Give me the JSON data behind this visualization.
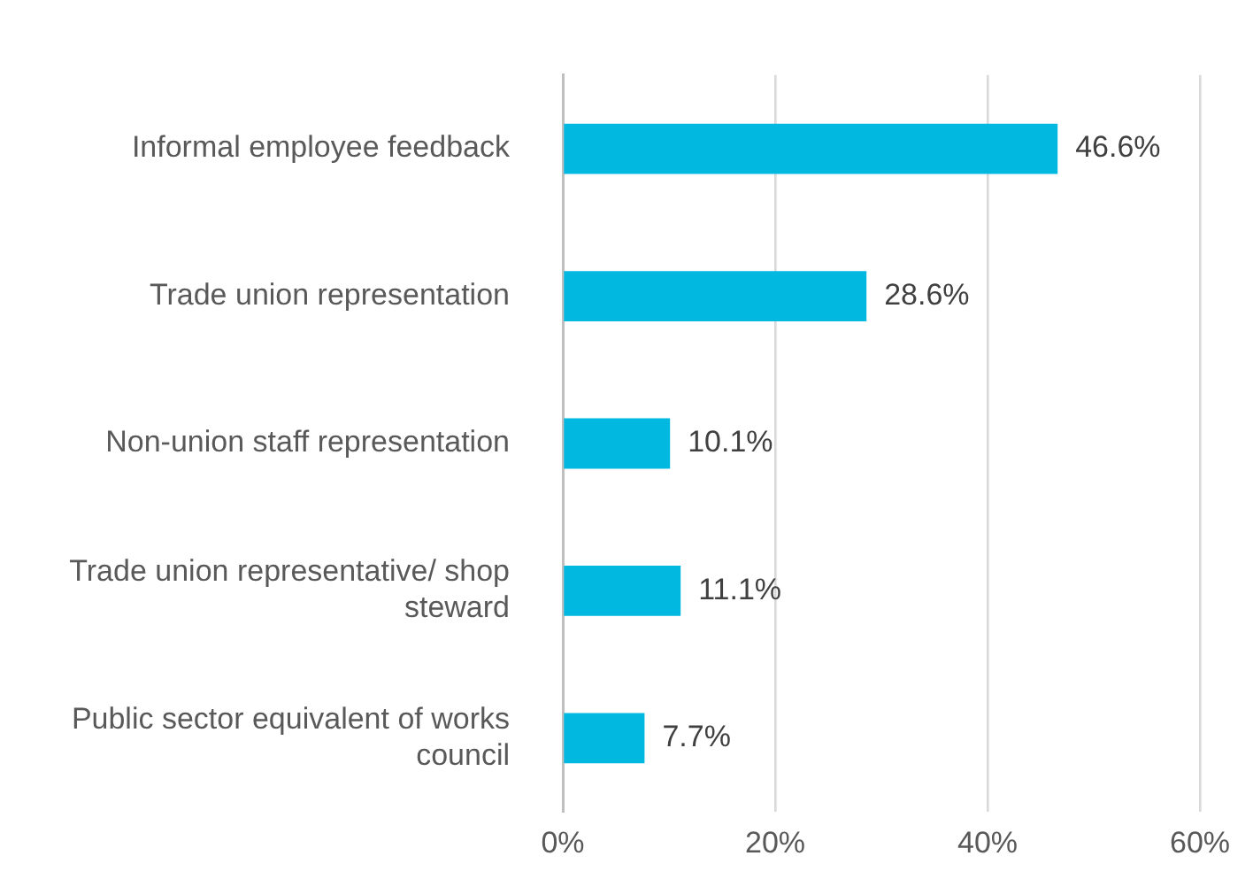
{
  "chart_data": {
    "type": "bar",
    "orientation": "horizontal",
    "categories": [
      "Informal employee feedback",
      "Trade union representation",
      "Non-union staff representation",
      "Trade union representative/ shop steward",
      "Public sector equivalent of works council"
    ],
    "values": [
      46.6,
      28.6,
      10.1,
      11.1,
      7.7
    ],
    "value_labels": [
      "46.6%",
      "28.6%",
      "10.1%",
      "11.1%",
      "7.7%"
    ],
    "color": "#00b8e0",
    "xlim": [
      0,
      60
    ],
    "xticks": [
      {
        "value": 0,
        "label": "0%"
      },
      {
        "value": 20,
        "label": "20%"
      },
      {
        "value": 40,
        "label": "40%"
      },
      {
        "value": 60,
        "label": "60%"
      }
    ],
    "grid": "x",
    "legend": false
  }
}
